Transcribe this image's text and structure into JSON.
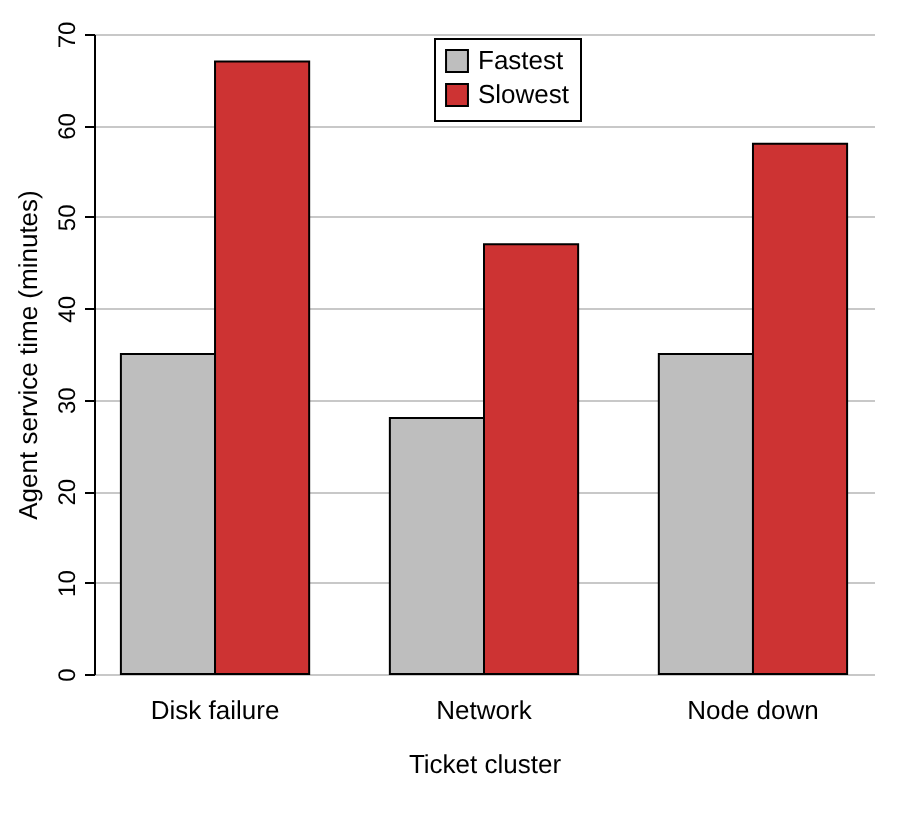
{
  "chart_data": {
    "type": "bar",
    "xlabel": "Ticket cluster",
    "ylabel": "Agent service time (minutes)",
    "categories": [
      "Disk failure",
      "Network",
      "Node down"
    ],
    "series": [
      {
        "name": "Fastest",
        "color": "#bebebe",
        "values": [
          35,
          28,
          35
        ]
      },
      {
        "name": "Slowest",
        "color": "#cd3333",
        "values": [
          67,
          47,
          58
        ]
      }
    ],
    "ylim": [
      0,
      70
    ],
    "yticks": [
      0,
      10,
      20,
      30,
      40,
      50,
      60,
      70
    ],
    "grid": "y",
    "legend": "top"
  }
}
